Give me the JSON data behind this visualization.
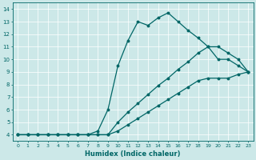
{
  "xlabel": "Humidex (Indice chaleur)",
  "bg_color": "#cce8e8",
  "line_color": "#006666",
  "xticks": [
    0,
    1,
    2,
    3,
    4,
    5,
    6,
    7,
    8,
    9,
    10,
    11,
    12,
    13,
    14,
    15,
    16,
    17,
    18,
    19,
    20,
    21,
    22,
    23
  ],
  "yticks": [
    4,
    5,
    6,
    7,
    8,
    9,
    10,
    11,
    12,
    13,
    14
  ],
  "line1_x": [
    0,
    1,
    2,
    3,
    4,
    5,
    6,
    7,
    8,
    9,
    10,
    11,
    12,
    13,
    14,
    15,
    16,
    17,
    18,
    19,
    20,
    21,
    22,
    23
  ],
  "line1_y": [
    4,
    4,
    4,
    4,
    4,
    4,
    4,
    4,
    4.3,
    6.0,
    9.5,
    11.5,
    13.0,
    12.7,
    13.3,
    13.7,
    13.0,
    12.3,
    11.7,
    11.0,
    10.0,
    10.0,
    9.5,
    9.0
  ],
  "line2_x": [
    0,
    1,
    2,
    3,
    4,
    5,
    6,
    7,
    8,
    9,
    10,
    11,
    12,
    13,
    14,
    15,
    16,
    17,
    18,
    19,
    20,
    21,
    22,
    23
  ],
  "line2_y": [
    4,
    4,
    4,
    4,
    4,
    4,
    4,
    4,
    4,
    4,
    5.0,
    5.8,
    6.5,
    7.2,
    7.9,
    8.5,
    9.2,
    9.8,
    10.5,
    11.0,
    11.0,
    10.5,
    10.0,
    9.0
  ],
  "line3_x": [
    0,
    1,
    2,
    3,
    4,
    5,
    6,
    7,
    8,
    9,
    10,
    11,
    12,
    13,
    14,
    15,
    16,
    17,
    18,
    19,
    20,
    21,
    22,
    23
  ],
  "line3_y": [
    4,
    4,
    4,
    4,
    4,
    4,
    4,
    4,
    4,
    4,
    4.3,
    4.8,
    5.3,
    5.8,
    6.3,
    6.8,
    7.3,
    7.8,
    8.3,
    8.5,
    8.5,
    8.5,
    8.8,
    9.0
  ]
}
